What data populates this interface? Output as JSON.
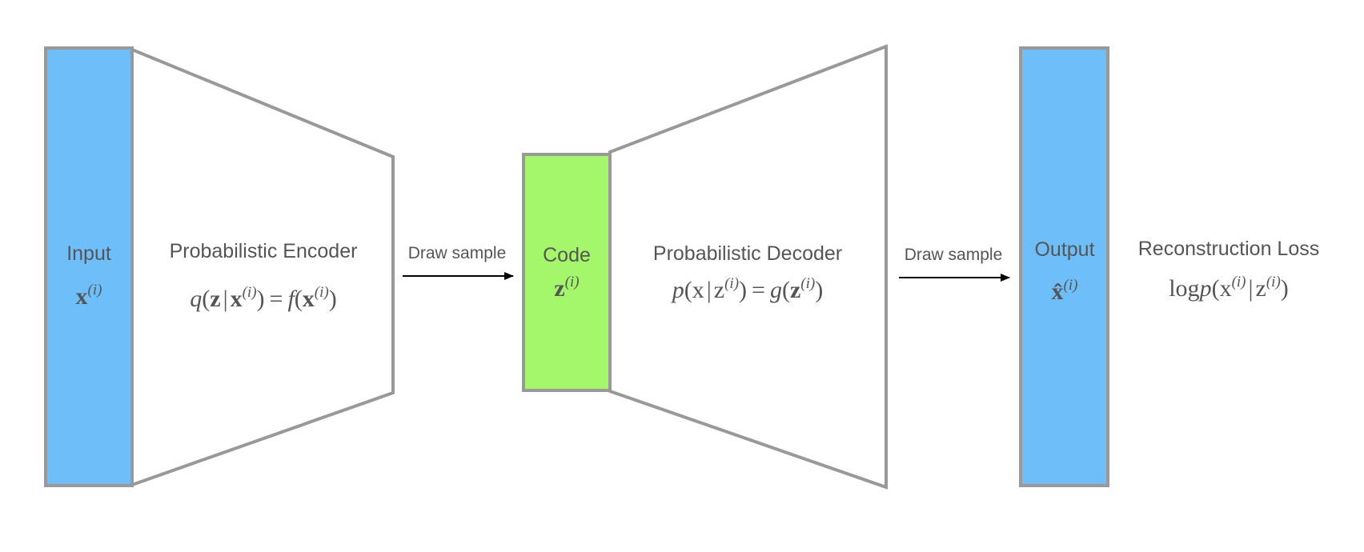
{
  "colors": {
    "input_fill": "#6ebff9",
    "code_fill": "#a4f66b",
    "output_fill": "#6ebff9",
    "stroke": "#999999",
    "text": "#555555",
    "arrow": "#000000"
  },
  "input": {
    "label": "Input",
    "symbol": "x",
    "superscript": "(i)"
  },
  "encoder": {
    "label": "Probabilistic Encoder",
    "formula": {
      "q": "q",
      "z": "z",
      "bar": "|",
      "x1": "x",
      "sup1": "(i)",
      "eq": "=",
      "f": "f",
      "x2": "x",
      "sup2": "(i)"
    }
  },
  "arrow1": {
    "label": "Draw sample"
  },
  "code": {
    "label": "Code",
    "symbol": "z",
    "superscript": "(i)"
  },
  "decoder": {
    "label": "Probabilistic Decoder",
    "formula": {
      "p": "p",
      "x": "x",
      "bar": "|",
      "z1": "z",
      "sup1": "(i)",
      "eq": "=",
      "g": "g",
      "z2": "z",
      "sup2": "(i)"
    }
  },
  "arrow2": {
    "label": "Draw sample"
  },
  "output": {
    "label": "Output",
    "symbol": "x̂",
    "superscript": "(i)"
  },
  "loss": {
    "label": "Reconstruction Loss",
    "formula": {
      "log": "log",
      "p": "p",
      "x": "x",
      "sup1": "(i)",
      "bar": "|",
      "z": "z",
      "sup2": "(i)"
    }
  }
}
